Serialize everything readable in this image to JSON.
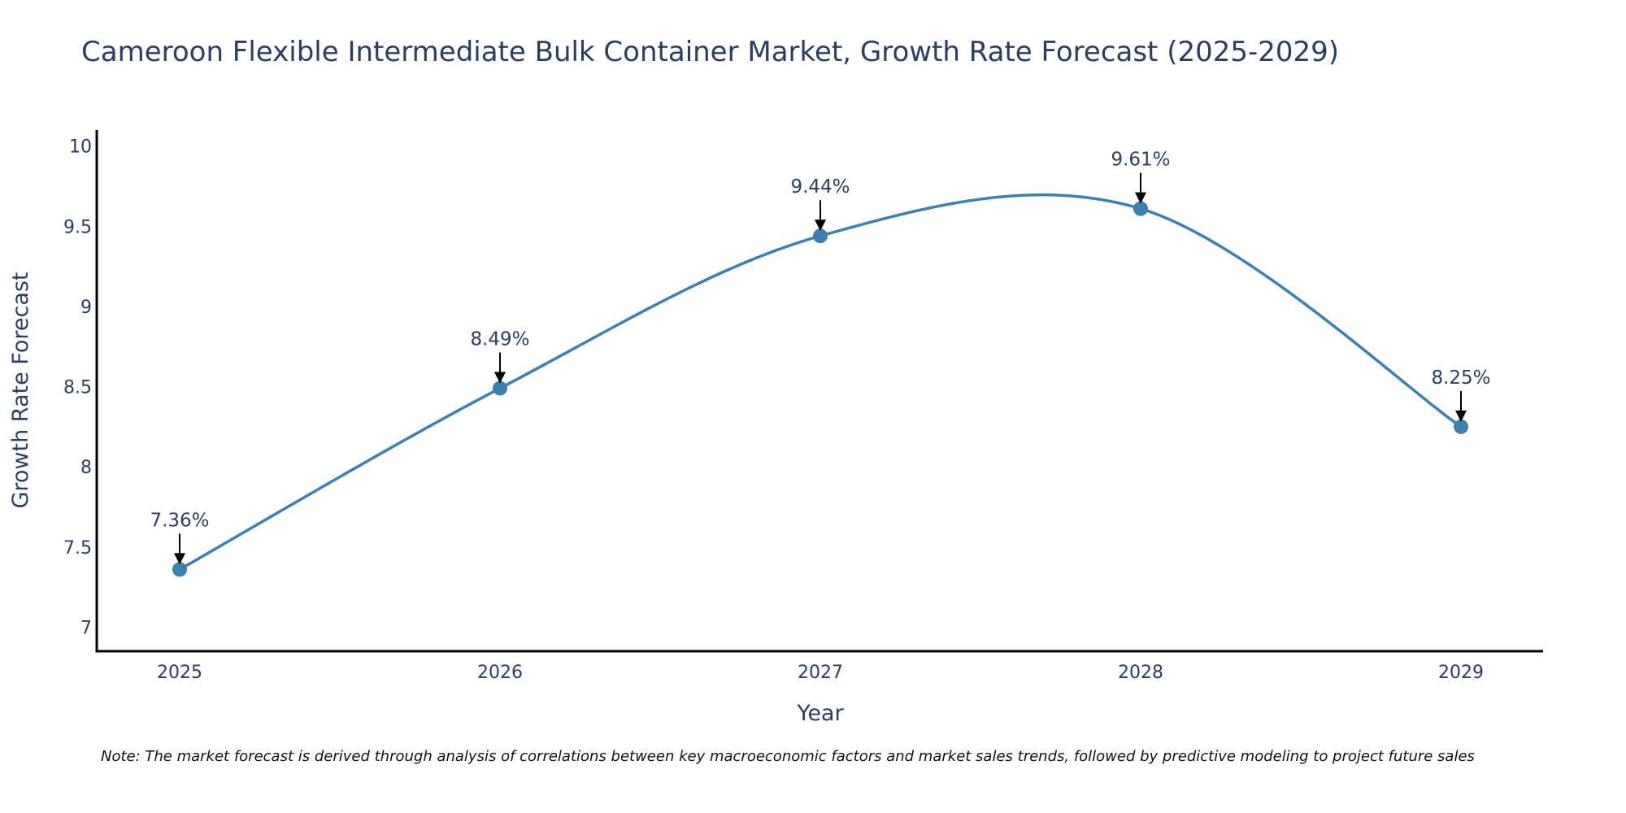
{
  "chart_data": {
    "type": "line",
    "title": "Cameroon Flexible Intermediate Bulk Container Market, Growth Rate Forecast (2025-2029)",
    "xlabel": "Year",
    "ylabel": "Growth Rate Forecast",
    "x": [
      "2025",
      "2026",
      "2027",
      "2028",
      "2029"
    ],
    "series": [
      {
        "name": "Growth Rate Forecast",
        "values": [
          7.36,
          8.49,
          9.44,
          9.61,
          8.25
        ],
        "color": "#3d7fad"
      }
    ],
    "data_labels": [
      "7.36%",
      "8.49%",
      "9.44%",
      "9.61%",
      "8.25%"
    ],
    "yticks": [
      "7",
      "7.5",
      "8",
      "8.5",
      "9",
      "9.5",
      "10"
    ],
    "ylim": [
      6.85,
      10.1
    ],
    "line_shape": "spline",
    "markers": true,
    "grid": false,
    "legend": "none",
    "note": "Note: The market forecast is derived through analysis of correlations between key macroeconomic factors and market sales trends, followed by predictive modeling to project future sales"
  }
}
